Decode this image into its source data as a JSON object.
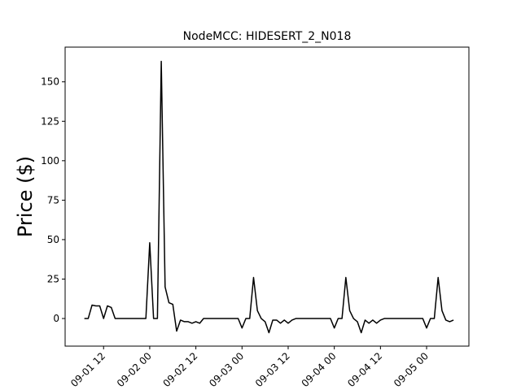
{
  "chart_data": {
    "type": "line",
    "title": "NodeMCC: HIDESERT_2_N018",
    "y_label": "Price ($)",
    "x": [
      "09-01 07",
      "09-01 08",
      "09-01 09",
      "09-01 10",
      "09-01 11",
      "09-01 12",
      "09-01 13",
      "09-01 14",
      "09-01 15",
      "09-01 16",
      "09-01 17",
      "09-01 18",
      "09-01 19",
      "09-01 20",
      "09-01 21",
      "09-01 22",
      "09-01 23",
      "09-02 00",
      "09-02 01",
      "09-02 02",
      "09-02 03",
      "09-02 04",
      "09-02 05",
      "09-02 06",
      "09-02 07",
      "09-02 08",
      "09-02 09",
      "09-02 10",
      "09-02 11",
      "09-02 12",
      "09-02 13",
      "09-02 14",
      "09-02 15",
      "09-02 16",
      "09-02 17",
      "09-02 18",
      "09-02 19",
      "09-02 20",
      "09-02 21",
      "09-02 22",
      "09-02 23",
      "09-03 00",
      "09-03 01",
      "09-03 02",
      "09-03 03",
      "09-03 04",
      "09-03 05",
      "09-03 06",
      "09-03 07",
      "09-03 08",
      "09-03 09",
      "09-03 10",
      "09-03 11",
      "09-03 12",
      "09-03 13",
      "09-03 14",
      "09-03 15",
      "09-03 16",
      "09-03 17",
      "09-03 18",
      "09-03 19",
      "09-03 20",
      "09-03 21",
      "09-03 22",
      "09-03 23",
      "09-04 00",
      "09-04 01",
      "09-04 02",
      "09-04 03",
      "09-04 04",
      "09-04 05",
      "09-04 06",
      "09-04 07",
      "09-04 08",
      "09-04 09",
      "09-04 10",
      "09-04 11",
      "09-04 12",
      "09-04 13",
      "09-04 14",
      "09-04 15",
      "09-04 16",
      "09-04 17",
      "09-04 18",
      "09-04 19",
      "09-04 20",
      "09-04 21",
      "09-04 22",
      "09-04 23",
      "09-05 00",
      "09-05 01",
      "09-05 02",
      "09-05 03",
      "09-05 04",
      "09-05 05",
      "09-05 06",
      "09-05 07"
    ],
    "series": [
      {
        "name": "Price",
        "color": "#000000",
        "values": [
          0,
          0,
          8.5,
          8,
          8,
          0,
          8,
          7,
          0,
          0,
          0,
          0,
          0,
          0,
          0,
          0,
          0,
          48,
          0,
          0,
          163,
          20,
          10,
          9,
          -8,
          -1,
          -2,
          -2,
          -3,
          -2,
          -3,
          0,
          0,
          0,
          0,
          0,
          0,
          0,
          0,
          0,
          0,
          -6,
          0,
          0,
          26,
          5,
          0,
          -2,
          -9,
          -1,
          -1,
          -3,
          -1,
          -3,
          -1,
          0,
          0,
          0,
          0,
          0,
          0,
          0,
          0,
          0,
          0,
          -6,
          0,
          0,
          26,
          5,
          0,
          -2,
          -9,
          -1,
          -3,
          -1,
          -3,
          -1,
          0,
          0,
          0,
          0,
          0,
          0,
          0,
          0,
          0,
          0,
          0,
          -6,
          0,
          0,
          26,
          5,
          -1,
          -2,
          -1
        ]
      }
    ],
    "xlim": [
      "09-01 02",
      "09-05 11"
    ],
    "xticks": [
      "09-01 12",
      "09-02 00",
      "09-02 12",
      "09-03 00",
      "09-03 12",
      "09-04 00",
      "09-04 12",
      "09-05 00"
    ],
    "ylim": [
      -17.5,
      172
    ],
    "yticks": [
      0,
      25,
      50,
      75,
      100,
      125,
      150
    ]
  }
}
